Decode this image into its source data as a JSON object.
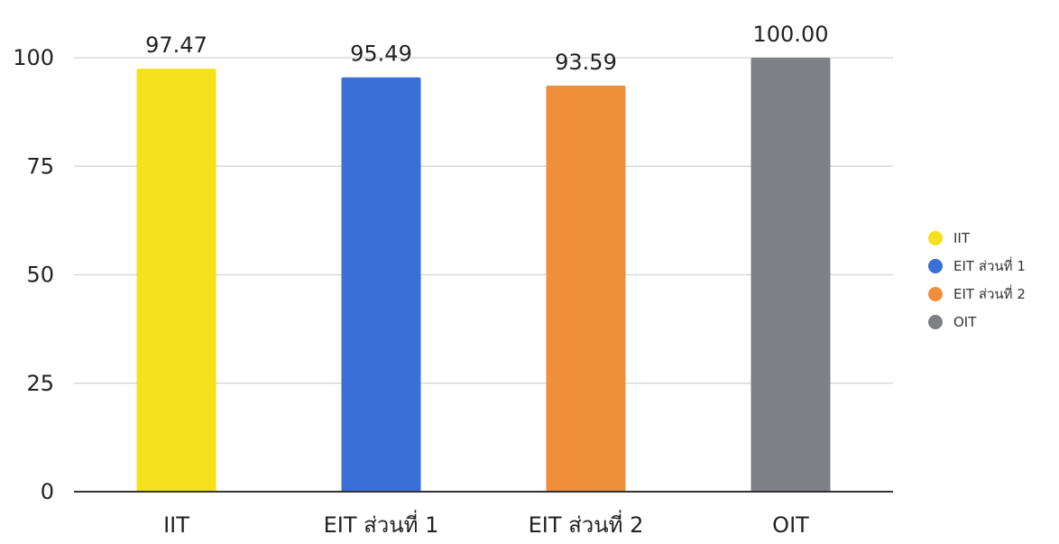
{
  "chart_data": {
    "type": "bar",
    "title": "",
    "xlabel": "",
    "ylabel": "",
    "categories": [
      "IIT",
      "EIT ส่วนที่ 1",
      "EIT ส่วนที่ 2",
      "OIT"
    ],
    "values": [
      97.47,
      95.49,
      93.59,
      100.0
    ],
    "data_labels": [
      "97.47",
      "95.49",
      "93.59",
      "100.00"
    ],
    "colors": [
      "#f5e11d",
      "#3a6fd8",
      "#ef8f3a",
      "#7e8086"
    ],
    "ylim": [
      0,
      100
    ],
    "yticks": [
      0,
      25,
      50,
      75,
      100
    ],
    "grid": true,
    "legend": {
      "position": "right",
      "entries": [
        "IIT",
        "EIT ส่วนที่ 1",
        "EIT ส่วนที่ 2",
        "OIT"
      ]
    }
  }
}
